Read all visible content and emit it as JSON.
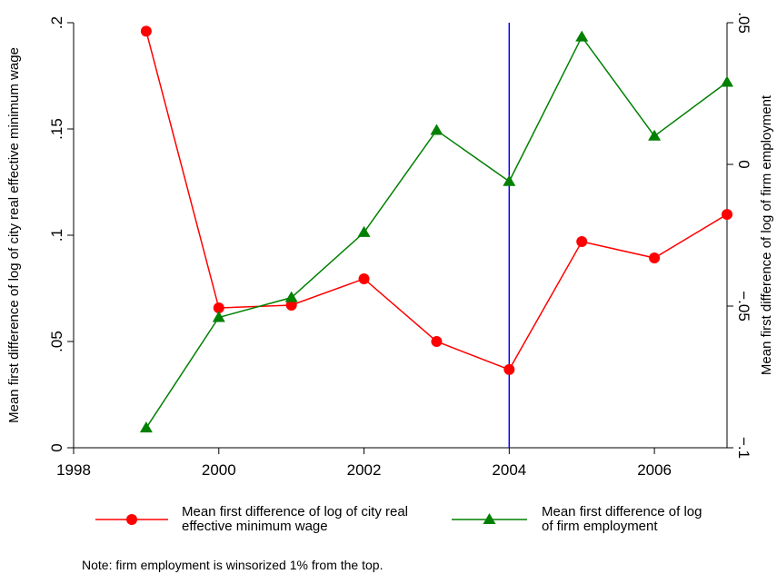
{
  "chart_data": {
    "type": "line",
    "x": [
      1999,
      2000,
      2001,
      2002,
      2003,
      2004,
      2005,
      2006,
      2007
    ],
    "xlim": [
      1998,
      2007
    ],
    "xticks": [
      1998,
      2000,
      2002,
      2004,
      2006
    ],
    "ylim": [
      0,
      0.2
    ],
    "yticks": [
      0,
      {
        "value": 0.05,
        "label": ".05"
      },
      {
        "value": 0.1,
        "label": ".1"
      },
      {
        "value": 0.15,
        "label": ".15"
      },
      {
        "value": 0.2,
        "label": ".2"
      }
    ],
    "y2lim": [
      -0.1,
      0.05
    ],
    "y2ticks": [
      {
        "value": -0.1,
        "label": "−.1"
      },
      {
        "value": -0.05,
        "label": "−.05"
      },
      0,
      {
        "value": 0.05,
        "label": ".05"
      }
    ],
    "ylabel": "Mean first difference of log of city real effective minimum wage",
    "y2label": "Mean first difference of log of firm employment",
    "xline": 2004,
    "xline_color": "#0000ff",
    "series": [
      {
        "name": "Mean first difference of log of city real effective minimum wage",
        "color": "#ff0000",
        "marker": "circle",
        "values": [
          0.196,
          0.0658,
          0.0671,
          0.0795,
          0.05,
          0.0368,
          0.097,
          0.0893,
          0.1098
        ]
      },
      {
        "name": "Mean first difference of log of firm employment",
        "color": "#008000",
        "marker": "triangle",
        "axis": "y2",
        "values": [
          -0.093,
          -0.054,
          -0.047,
          -0.024,
          0.012,
          -0.006,
          0.045,
          0.01,
          0.029
        ]
      }
    ],
    "note": "Note: firm employment is winsorized 1% from the top."
  }
}
